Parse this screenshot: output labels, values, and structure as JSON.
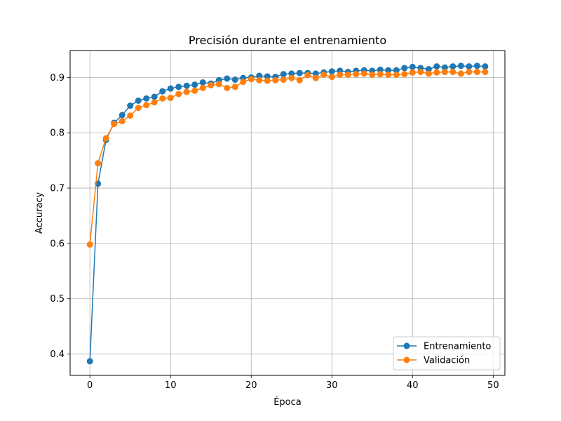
{
  "chart_data": {
    "type": "line",
    "title": "Precisión durante el entrenamiento",
    "xlabel": "Época",
    "ylabel": "Accuracy",
    "xlim": [
      -2.45,
      51.45
    ],
    "ylim": [
      0.3614,
      0.9487
    ],
    "x_ticks": [
      0,
      10,
      20,
      30,
      40,
      50
    ],
    "y_ticks": [
      0.4,
      0.5,
      0.6,
      0.7,
      0.8,
      0.9
    ],
    "grid": true,
    "legend_position": "lower-right",
    "x": [
      0,
      1,
      2,
      3,
      4,
      5,
      6,
      7,
      8,
      9,
      10,
      11,
      12,
      13,
      14,
      15,
      16,
      17,
      18,
      19,
      20,
      21,
      22,
      23,
      24,
      25,
      26,
      27,
      28,
      29,
      30,
      31,
      32,
      33,
      34,
      35,
      36,
      37,
      38,
      39,
      40,
      41,
      42,
      43,
      44,
      45,
      46,
      47,
      48,
      49
    ],
    "series": [
      {
        "name": "Entrenamiento",
        "color": "#1f77b4",
        "values": [
          0.387,
          0.708,
          0.787,
          0.818,
          0.832,
          0.849,
          0.858,
          0.862,
          0.865,
          0.875,
          0.88,
          0.883,
          0.885,
          0.887,
          0.891,
          0.889,
          0.895,
          0.898,
          0.896,
          0.899,
          0.9,
          0.903,
          0.902,
          0.901,
          0.906,
          0.907,
          0.908,
          0.908,
          0.907,
          0.909,
          0.911,
          0.912,
          0.91,
          0.912,
          0.913,
          0.912,
          0.914,
          0.913,
          0.913,
          0.917,
          0.919,
          0.917,
          0.915,
          0.92,
          0.918,
          0.92,
          0.921,
          0.92,
          0.921,
          0.92
        ]
      },
      {
        "name": "Validación",
        "color": "#ff7f0e",
        "values": [
          0.598,
          0.745,
          0.79,
          0.816,
          0.821,
          0.831,
          0.845,
          0.85,
          0.855,
          0.862,
          0.863,
          0.87,
          0.874,
          0.876,
          0.881,
          0.886,
          0.888,
          0.881,
          0.883,
          0.892,
          0.897,
          0.895,
          0.894,
          0.895,
          0.896,
          0.899,
          0.895,
          0.904,
          0.899,
          0.905,
          0.901,
          0.905,
          0.905,
          0.906,
          0.907,
          0.905,
          0.906,
          0.905,
          0.905,
          0.906,
          0.909,
          0.91,
          0.907,
          0.909,
          0.91,
          0.91,
          0.907,
          0.91,
          0.91,
          0.91
        ]
      }
    ]
  }
}
